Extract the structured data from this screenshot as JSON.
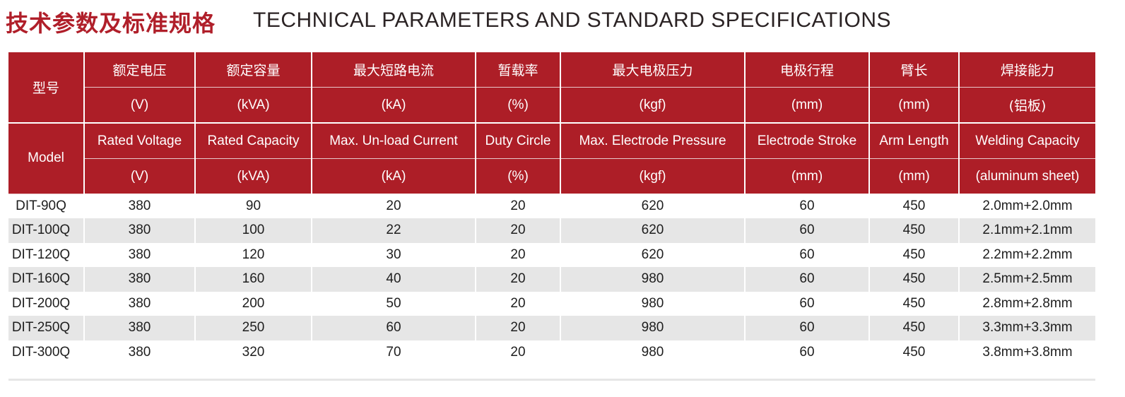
{
  "title": {
    "cn": "技术参数及标准规格",
    "en": "TECHNICAL PARAMETERS AND STANDARD SPECIFICATIONS"
  },
  "header": {
    "model_cn": "型号",
    "model_en": "Model",
    "columns": [
      {
        "cn": "额定电压",
        "unit": "(V)",
        "en": "Rated Voltage",
        "en_unit": "(V)"
      },
      {
        "cn": "额定容量",
        "unit": "(kVA)",
        "en": "Rated Capacity",
        "en_unit": "(kVA)"
      },
      {
        "cn": "最大短路电流",
        "unit": "(kA)",
        "en": "Max. Un-load Current",
        "en_unit": "(kA)"
      },
      {
        "cn": "暂载率",
        "unit": "(%)",
        "en": "Duty Circle",
        "en_unit": "(%)"
      },
      {
        "cn": "最大电极压力",
        "unit": "(kgf)",
        "en": "Max. Electrode Pressure",
        "en_unit": "(kgf)"
      },
      {
        "cn": "电极行程",
        "unit": "(mm)",
        "en": "Electrode Stroke",
        "en_unit": "(mm)"
      },
      {
        "cn": "臂长",
        "unit": "(mm)",
        "en": "Arm Length",
        "en_unit": "(mm)"
      },
      {
        "cn": "焊接能力",
        "unit": "(铝板)",
        "en": "Welding Capacity",
        "en_unit": "(aluminum sheet)"
      }
    ]
  },
  "rows": [
    [
      "DIT-90Q",
      "380",
      "90",
      "20",
      "20",
      "620",
      "60",
      "450",
      "2.0mm+2.0mm"
    ],
    [
      "DIT-100Q",
      "380",
      "100",
      "22",
      "20",
      "620",
      "60",
      "450",
      "2.1mm+2.1mm"
    ],
    [
      "DIT-120Q",
      "380",
      "120",
      "30",
      "20",
      "620",
      "60",
      "450",
      "2.2mm+2.2mm"
    ],
    [
      "DIT-160Q",
      "380",
      "160",
      "40",
      "20",
      "980",
      "60",
      "450",
      "2.5mm+2.5mm"
    ],
    [
      "DIT-200Q",
      "380",
      "200",
      "50",
      "20",
      "980",
      "60",
      "450",
      "2.8mm+2.8mm"
    ],
    [
      "DIT-250Q",
      "380",
      "250",
      "60",
      "20",
      "980",
      "60",
      "450",
      "3.3mm+3.3mm"
    ],
    [
      "DIT-300Q",
      "380",
      "320",
      "70",
      "20",
      "980",
      "60",
      "450",
      "3.8mm+3.8mm"
    ]
  ]
}
